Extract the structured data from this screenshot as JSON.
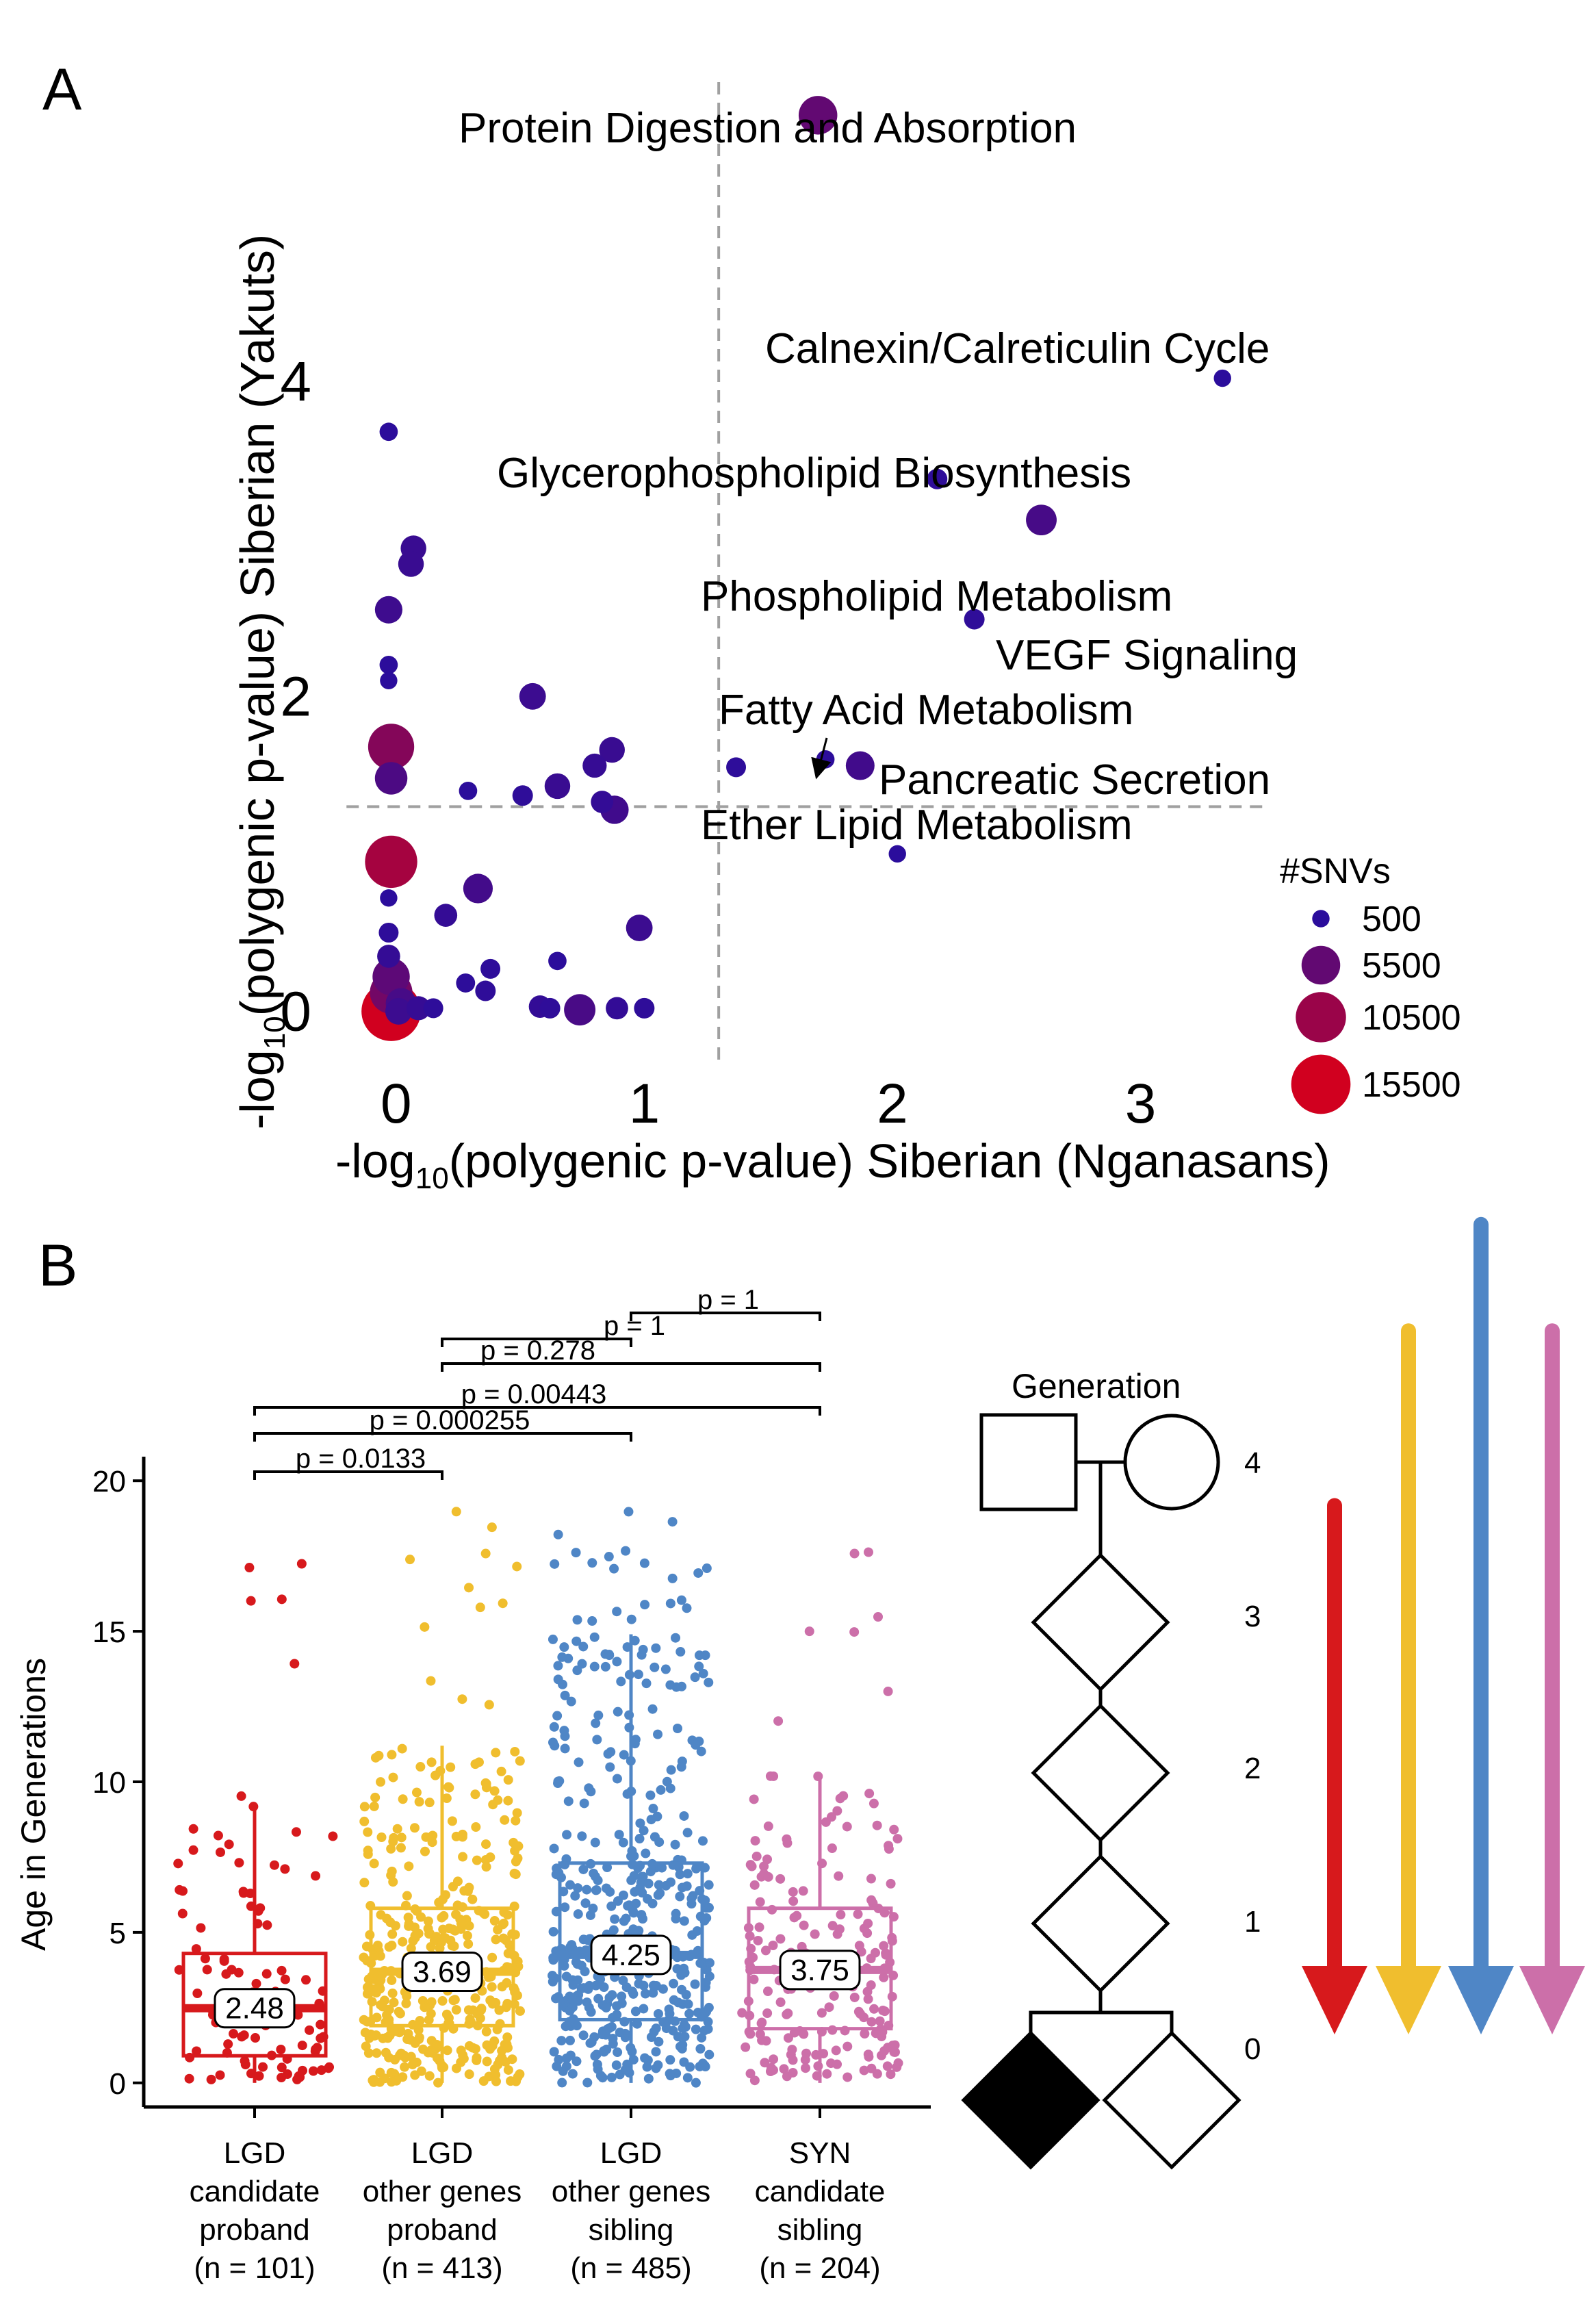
{
  "panels": {
    "a_letter": "A",
    "b_letter": "B"
  },
  "chart_data": [
    {
      "panel": "A",
      "type": "scatter",
      "xlabel_prefix": "-log",
      "xlabel_sub": "10",
      "xlabel_rest": "(polygenic p-value) Siberian (Nganasans)",
      "ylabel_prefix": "-log",
      "ylabel_sub": "10",
      "ylabel_rest": "(polygenic p-value) Siberian (Yakuts)",
      "xlim": [
        -0.3,
        3.55
      ],
      "ylim": [
        -0.35,
        5.9
      ],
      "x_ticks": [
        0,
        1,
        2,
        3
      ],
      "y_ticks": [
        0,
        2,
        4
      ],
      "threshold_x": 1.3,
      "threshold_y": 1.3,
      "size_legend": {
        "title": "#SNVs",
        "entries": [
          {
            "label": "500",
            "value": 500
          },
          {
            "label": "5500",
            "value": 5500
          },
          {
            "label": "10500",
            "value": 10500
          },
          {
            "label": "15500",
            "value": 15500
          }
        ],
        "color_low": "#2b0d9c",
        "color_high": "#d1001f"
      },
      "annotations": [
        {
          "id": "protein-digestion",
          "text": "Protein Digestion and Absorption"
        },
        {
          "id": "calnexin",
          "text": "Calnexin/Calreticulin Cycle"
        },
        {
          "id": "glycerophospholipid",
          "text": "Glycerophospholipid Biosynthesis"
        },
        {
          "id": "phospholipid",
          "text": "Phospholipid Metabolism"
        },
        {
          "id": "vegf",
          "text": "VEGF Signaling"
        },
        {
          "id": "fatty-acid",
          "text": "Fatty Acid Metabolism"
        },
        {
          "id": "pancreatic",
          "text": "Pancreatic Secretion"
        },
        {
          "id": "ether-lipid",
          "text": "Ether Lipid Metabolism"
        }
      ],
      "points": [
        {
          "x": 1.7,
          "y": 5.69,
          "snvs": 5500
        },
        {
          "x": 3.33,
          "y": 4.02,
          "snvs": 500
        },
        {
          "x": 2.18,
          "y": 3.38,
          "snvs": 900
        },
        {
          "x": 2.6,
          "y": 3.12,
          "snvs": 3000
        },
        {
          "x": 2.33,
          "y": 2.49,
          "snvs": 900
        },
        {
          "x": 1.73,
          "y": 1.6,
          "snvs": 600
        },
        {
          "x": 1.87,
          "y": 1.56,
          "snvs": 2500
        },
        {
          "x": 1.37,
          "y": 1.55,
          "snvs": 800
        },
        {
          "x": 2.02,
          "y": 1.0,
          "snvs": 500
        },
        {
          "x": -0.03,
          "y": 3.68,
          "snvs": 600
        },
        {
          "x": 0.07,
          "y": 2.94,
          "snvs": 1800
        },
        {
          "x": 0.06,
          "y": 2.84,
          "snvs": 1800
        },
        {
          "x": -0.03,
          "y": 2.55,
          "snvs": 2200
        },
        {
          "x": -0.03,
          "y": 2.2,
          "snvs": 600
        },
        {
          "x": -0.03,
          "y": 2.1,
          "snvs": 500
        },
        {
          "x": 0.55,
          "y": 2.0,
          "snvs": 2000
        },
        {
          "x": -0.02,
          "y": 1.68,
          "snvs": 8500
        },
        {
          "x": 0.87,
          "y": 1.66,
          "snvs": 1800
        },
        {
          "x": 0.8,
          "y": 1.56,
          "snvs": 1500
        },
        {
          "x": 0.65,
          "y": 1.43,
          "snvs": 1800
        },
        {
          "x": -0.02,
          "y": 1.48,
          "snvs": 3500
        },
        {
          "x": 0.29,
          "y": 1.4,
          "snvs": 600
        },
        {
          "x": 0.51,
          "y": 1.37,
          "snvs": 900
        },
        {
          "x": 0.83,
          "y": 1.33,
          "snvs": 1200
        },
        {
          "x": 0.88,
          "y": 1.28,
          "snvs": 2400
        },
        {
          "x": -0.02,
          "y": 0.95,
          "snvs": 11500
        },
        {
          "x": -0.03,
          "y": 0.72,
          "snvs": 500
        },
        {
          "x": 0.33,
          "y": 0.78,
          "snvs": 2700
        },
        {
          "x": 0.2,
          "y": 0.61,
          "snvs": 1300
        },
        {
          "x": 0.98,
          "y": 0.53,
          "snvs": 2000
        },
        {
          "x": -0.03,
          "y": 0.5,
          "snvs": 800
        },
        {
          "x": -0.03,
          "y": 0.35,
          "snvs": 1300
        },
        {
          "x": 0.65,
          "y": 0.32,
          "snvs": 600
        },
        {
          "x": 0.38,
          "y": 0.27,
          "snvs": 800
        },
        {
          "x": -0.02,
          "y": 0.22,
          "snvs": 5000
        },
        {
          "x": 0.28,
          "y": 0.18,
          "snvs": 700
        },
        {
          "x": 0.36,
          "y": 0.13,
          "snvs": 900
        },
        {
          "x": -0.02,
          "y": 0.12,
          "snvs": 7000
        },
        {
          "x": 0.02,
          "y": 0.05,
          "snvs": 3000
        },
        {
          "x": 0.09,
          "y": 0.02,
          "snvs": 1500
        },
        {
          "x": 0.15,
          "y": 0.02,
          "snvs": 800
        },
        {
          "x": 0.58,
          "y": 0.03,
          "snvs": 1200
        },
        {
          "x": 0.62,
          "y": 0.02,
          "snvs": 900
        },
        {
          "x": 0.74,
          "y": 0.01,
          "snvs": 3200
        },
        {
          "x": 0.89,
          "y": 0.02,
          "snvs": 1200
        },
        {
          "x": 1.0,
          "y": 0.02,
          "snvs": 900
        },
        {
          "x": -0.02,
          "y": 0.0,
          "snvs": 15500
        },
        {
          "x": 0.01,
          "y": 0.0,
          "snvs": 2000
        }
      ]
    },
    {
      "panel": "B",
      "type": "box",
      "ylabel": "Age in Generations",
      "ylim": [
        -0.8,
        20.8
      ],
      "y_ticks": [
        0,
        5,
        10,
        15,
        20
      ],
      "groups": [
        {
          "id": "lgd-candidate-proband",
          "label_lines": [
            "LGD",
            "candidate",
            "proband",
            "(n = 101)"
          ],
          "color": "#d7191c",
          "n": 101,
          "q1": 0.9,
          "median": 2.48,
          "q3": 4.3,
          "whisker_low": 0.0,
          "whisker_high": 9.2,
          "annotation": "2.48"
        },
        {
          "id": "lgd-other-proband",
          "label_lines": [
            "LGD",
            "other genes",
            "proband",
            "(n = 413)"
          ],
          "color": "#f0be2e",
          "n": 413,
          "q1": 1.9,
          "median": 3.69,
          "q3": 5.8,
          "whisker_low": 0.0,
          "whisker_high": 11.2,
          "annotation": "3.69"
        },
        {
          "id": "lgd-other-sibling",
          "label_lines": [
            "LGD",
            "other genes",
            "sibling",
            "(n = 485)"
          ],
          "color": "#4f86c6",
          "n": 485,
          "q1": 2.1,
          "median": 4.25,
          "q3": 7.3,
          "whisker_low": 0.0,
          "whisker_high": 14.9,
          "annotation": "4.25"
        },
        {
          "id": "syn-candidate-sibling",
          "label_lines": [
            "SYN",
            "candidate",
            "sibling",
            "(n = 204)"
          ],
          "color": "#cc6fa9",
          "n": 204,
          "q1": 1.8,
          "median": 3.75,
          "q3": 5.8,
          "whisker_low": 0.0,
          "whisker_high": 10.2,
          "annotation": "3.75"
        }
      ],
      "comparisons": [
        {
          "from": 0,
          "to": 1,
          "label": "p = 0.0133"
        },
        {
          "from": 0,
          "to": 2,
          "label": "p = 0.000255"
        },
        {
          "from": 0,
          "to": 3,
          "label": "p = 0.00443"
        },
        {
          "from": 1,
          "to": 3,
          "label": "p = 0.278"
        },
        {
          "from": 1,
          "to": 2,
          "label": "p = 1"
        },
        {
          "from": 2,
          "to": 3,
          "label": "p = 1"
        }
      ]
    }
  ],
  "pedigree": {
    "title": "Generation",
    "levels": [
      {
        "generation": 4,
        "label": "4"
      },
      {
        "generation": 3,
        "label": "3"
      },
      {
        "generation": 2,
        "label": "2"
      },
      {
        "generation": 1,
        "label": "1"
      },
      {
        "generation": 0,
        "label": "0"
      }
    ],
    "arrows": [
      {
        "color": "#d7191c",
        "from_generation": 2.75
      },
      {
        "color": "#f0be2e",
        "from_generation": 3.9
      },
      {
        "color": "#4f86c6",
        "from_generation": 4.6
      },
      {
        "color": "#cc6fa9",
        "from_generation": 3.9
      }
    ]
  }
}
